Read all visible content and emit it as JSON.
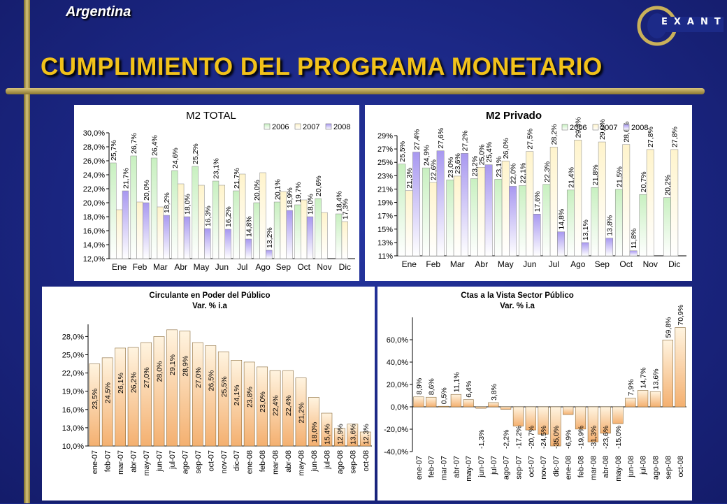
{
  "header": {
    "country": "Argentina",
    "title": "CUMPLIMIENTO DEL PROGRAMA MONETARIO",
    "logo_text": "EXANTE"
  },
  "colors": {
    "background": "#1c2a88",
    "gold": "#f2c21a",
    "s2006": "#c8f0c0",
    "s2007": "#fff4cc",
    "s2008": "#b9a8f0"
  },
  "chart_data": [
    {
      "type": "bar",
      "title": "M2 TOTAL",
      "categories": [
        "Ene",
        "Feb",
        "Mar",
        "Abr",
        "May",
        "Jun",
        "Jul",
        "Ago",
        "Sep",
        "Oct",
        "Nov",
        "Dic"
      ],
      "ylim": [
        12,
        30
      ],
      "yticks": [
        "12,0%",
        "14,0%",
        "16,0%",
        "18,0%",
        "20,0%",
        "22,0%",
        "24,0%",
        "26,0%",
        "28,0%",
        "30,0%"
      ],
      "legend": [
        "2006",
        "2007",
        "2008"
      ],
      "legend_position": "top-right",
      "series": [
        {
          "name": "2006",
          "values": [
            25.7,
            26.7,
            26.4,
            24.6,
            25.2,
            23.1,
            21.7,
            20.0,
            20.1,
            19.7,
            20.6,
            18.4
          ],
          "labels": [
            "25,7%",
            "26,7%",
            "26,4%",
            "24,6%",
            "25,2%",
            "23,1%",
            "21,7%",
            "20,0%",
            "20,1%",
            "19,7%",
            "20,6%",
            "18,4%"
          ]
        },
        {
          "name": "2007",
          "values": [
            19.0,
            20.1,
            19.4,
            22.7,
            22.5,
            22.5,
            24.1,
            24.3,
            21.6,
            20.4,
            18.6,
            17.3
          ],
          "labels": [
            "",
            "",
            "",
            "",
            "",
            "",
            "",
            "",
            "",
            "",
            "",
            "17,3%"
          ]
        },
        {
          "name": "2008",
          "values": [
            21.7,
            20.0,
            18.2,
            18.0,
            16.3,
            16.2,
            14.8,
            13.2,
            18.9,
            18.0,
            null,
            null
          ],
          "labels": [
            "21,7%",
            "20,0%",
            "18,2%",
            "18,0%",
            "16,3%",
            "16,2%",
            "14,8%",
            "13,2%",
            "18,9%",
            "18,0%",
            "",
            ""
          ]
        }
      ]
    },
    {
      "type": "bar",
      "title": "M2 Privado",
      "categories": [
        "Ene",
        "Feb",
        "Mar",
        "Abr",
        "May",
        "Jun",
        "Jul",
        "Ago",
        "Sep",
        "Oct",
        "Nov",
        "Dic"
      ],
      "ylim": [
        11,
        30
      ],
      "yticks": [
        "11%",
        "13%",
        "15%",
        "17%",
        "19%",
        "21%",
        "23%",
        "25%",
        "27%",
        "29%"
      ],
      "legend": [
        "2006",
        "2007",
        "2008"
      ],
      "legend_position": "top-right",
      "series": [
        {
          "name": "2006",
          "values": [
            25.5,
            24.9,
            23.0,
            23.2,
            23.1,
            22.1,
            22.3,
            21.4,
            21.8,
            21.5,
            20.7,
            20.2
          ],
          "labels": [
            "25,5%",
            "24,9%",
            "23,0%",
            "23,2%",
            "23,1%",
            "22,1%",
            "22,3%",
            "21,4%",
            "21,8%",
            "21,5%",
            "20,7%",
            "20,2%"
          ]
        },
        {
          "name": "2007",
          "values": [
            21.3,
            22.6,
            23.6,
            25.0,
            26.0,
            27.5,
            28.2,
            29.3,
            29.0,
            28.6,
            27.8,
            27.8
          ],
          "labels": [
            "21,3%",
            "22,6%",
            "23,6%",
            "25,0%",
            "26,0%",
            "27,5%",
            "28,2%",
            "29,3%",
            "29,0%",
            "28,6%",
            "27,8%",
            "27,8%"
          ]
        },
        {
          "name": "2008",
          "values": [
            27.4,
            27.6,
            27.2,
            25.4,
            22.0,
            17.6,
            14.8,
            13.1,
            13.8,
            11.8,
            null,
            null
          ],
          "labels": [
            "27,4%",
            "27,6%",
            "27,2%",
            "25,4%",
            "22,0%",
            "17,6%",
            "14,8%",
            "13,1%",
            "13,8%",
            "11,8%",
            "",
            ""
          ]
        }
      ]
    },
    {
      "type": "bar",
      "title": "Circulante en Poder del Público",
      "subtitle": "Var. % i.a",
      "categories": [
        "ene-07",
        "feb-07",
        "mar-07",
        "abr-07",
        "may-07",
        "jun-07",
        "jul-07",
        "ago-07",
        "sep-07",
        "oct-07",
        "nov-07",
        "dic-07",
        "ene-08",
        "feb-08",
        "mar-08",
        "abr-08",
        "may-08",
        "jun-08",
        "jul-08",
        "ago-08",
        "sep-08",
        "oct-08"
      ],
      "ylim": [
        10,
        30
      ],
      "yticks": [
        "10,0%",
        "13,0%",
        "16,0%",
        "19,0%",
        "22,0%",
        "25,0%",
        "28,0%"
      ],
      "values": [
        23.5,
        24.5,
        26.1,
        26.2,
        27.0,
        28.0,
        29.1,
        28.9,
        27.0,
        26.5,
        25.5,
        24.1,
        23.8,
        23.0,
        22.4,
        22.4,
        21.2,
        18.0,
        15.4,
        12.9,
        13.6,
        12.3
      ],
      "labels": [
        "23,5%",
        "24,5%",
        "26,1%",
        "26,2%",
        "27,0%",
        "28,0%",
        "29,1%",
        "28,9%",
        "27,0%",
        "26,5%",
        "25,5%",
        "24,1%",
        "23,8%",
        "23,0%",
        "22,4%",
        "22,4%",
        "21,2%",
        "18,0%",
        "15,4%",
        "12,9%",
        "13,6%",
        "12,3%"
      ]
    },
    {
      "type": "bar",
      "title": "Ctas a la Vista Sector Público",
      "subtitle": "Var. % i.a",
      "categories": [
        "ene-07",
        "feb-07",
        "mar-07",
        "abr-07",
        "may-07",
        "jun-07",
        "jul-07",
        "ago-07",
        "sep-07",
        "oct-07",
        "nov-07",
        "dic-07",
        "ene-08",
        "feb-08",
        "mar-08",
        "abr-08",
        "may-08",
        "jun-08",
        "jul-08",
        "ago-08",
        "sep-08",
        "oct-08"
      ],
      "ylim": [
        -40,
        80
      ],
      "yticks": [
        "-40,0%",
        "-20,0%",
        "0,0%",
        "20,0%",
        "40,0%",
        "60,0%"
      ],
      "values": [
        8.9,
        8.6,
        0.5,
        11.1,
        6.4,
        -1.3,
        3.8,
        -2.2,
        -17.2,
        -20.7,
        -24.5,
        -35.0,
        -6.9,
        -19.9,
        -31.3,
        -23.6,
        -15.0,
        7.9,
        14.7,
        13.6,
        59.8,
        70.9
      ],
      "labels": [
        "8,9%",
        "8,6%",
        "0,5%",
        "11,1%",
        "6,4%",
        "-1,3%",
        "3,8%",
        "-2,2%",
        "-17,2%",
        "-20,7%",
        "-24,5%",
        "-35,0%",
        "-6,9%",
        "-19,9%",
        "-31,3%",
        "-23,6%",
        "-15,0%",
        "7,9%",
        "14,7%",
        "13,6%",
        "59,8%",
        "70,9%"
      ]
    }
  ]
}
